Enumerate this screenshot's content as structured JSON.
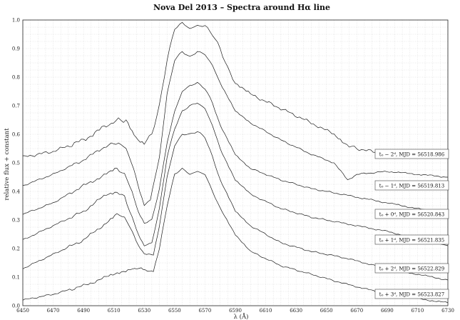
{
  "chart_data": {
    "type": "line",
    "title": "Nova Del 2013 – Spectra around Hα line",
    "xlabel": "λ (Å)",
    "ylabel": "relative flux + constant",
    "xlim": [
      6450,
      6730
    ],
    "ylim": [
      0.0,
      1.0
    ],
    "x_ticks": [
      "6450",
      "6470",
      "6490",
      "6510",
      "6530",
      "6550",
      "6570",
      "6590",
      "6610",
      "6630",
      "6650",
      "6670",
      "6690",
      "6710",
      "6730"
    ],
    "y_ticks": [
      "0.0",
      "0.1",
      "0.2",
      "0.3",
      "0.4",
      "0.5",
      "0.6",
      "0.7",
      "0.8",
      "0.9",
      "1.0"
    ],
    "grid": true,
    "series": [
      {
        "name": "t₀ − 2ᵈ, MJD = 56518.986",
        "x": [
          6450,
          6470,
          6490,
          6505,
          6513,
          6518,
          6522,
          6526,
          6530,
          6535,
          6540,
          6545,
          6550,
          6555,
          6560,
          6565,
          6570,
          6575,
          6580,
          6585,
          6590,
          6600,
          6620,
          6640,
          6655,
          6662,
          6665,
          6670,
          6690
        ],
        "y": [
          0.52,
          0.54,
          0.58,
          0.63,
          0.65,
          0.65,
          0.61,
          0.58,
          0.57,
          0.6,
          0.7,
          0.86,
          0.97,
          0.99,
          0.97,
          0.98,
          0.98,
          0.95,
          0.9,
          0.83,
          0.78,
          0.74,
          0.69,
          0.64,
          0.6,
          0.57,
          0.56,
          0.55,
          0.53
        ]
      },
      {
        "name": "t₀ − 1ᵈ, MJD = 56519.813",
        "x": [
          6450,
          6470,
          6490,
          6505,
          6513,
          6518,
          6523,
          6527,
          6530,
          6534,
          6540,
          6545,
          6550,
          6555,
          6560,
          6565,
          6570,
          6575,
          6580,
          6590,
          6600,
          6620,
          6640,
          6655,
          6661,
          6664,
          6670,
          6690,
          6730
        ],
        "y": [
          0.42,
          0.46,
          0.51,
          0.56,
          0.57,
          0.55,
          0.48,
          0.4,
          0.35,
          0.37,
          0.52,
          0.74,
          0.86,
          0.89,
          0.87,
          0.89,
          0.88,
          0.84,
          0.78,
          0.68,
          0.64,
          0.58,
          0.53,
          0.5,
          0.46,
          0.44,
          0.46,
          0.47,
          0.45
        ]
      },
      {
        "name": "t₀ + 0ᵈ, MJD = 56520.843",
        "x": [
          6450,
          6470,
          6490,
          6505,
          6512,
          6517,
          6522,
          6526,
          6530,
          6535,
          6540,
          6545,
          6550,
          6555,
          6560,
          6565,
          6570,
          6575,
          6580,
          6590,
          6600,
          6620,
          6640,
          6660,
          6690,
          6730
        ],
        "y": [
          0.32,
          0.36,
          0.42,
          0.46,
          0.48,
          0.46,
          0.4,
          0.33,
          0.29,
          0.3,
          0.41,
          0.57,
          0.68,
          0.75,
          0.77,
          0.78,
          0.76,
          0.71,
          0.63,
          0.53,
          0.48,
          0.44,
          0.41,
          0.39,
          0.36,
          0.32
        ]
      },
      {
        "name": "t₀ + 1ᵈ, MJD = 56521.835",
        "x": [
          6450,
          6470,
          6490,
          6505,
          6512,
          6517,
          6522,
          6526,
          6530,
          6535,
          6540,
          6545,
          6550,
          6555,
          6560,
          6565,
          6570,
          6575,
          6580,
          6590,
          6600,
          6620,
          6640,
          6660,
          6690,
          6730
        ],
        "y": [
          0.23,
          0.28,
          0.33,
          0.39,
          0.4,
          0.38,
          0.31,
          0.25,
          0.21,
          0.22,
          0.34,
          0.52,
          0.62,
          0.68,
          0.7,
          0.71,
          0.69,
          0.63,
          0.55,
          0.44,
          0.39,
          0.34,
          0.31,
          0.29,
          0.26,
          0.21
        ]
      },
      {
        "name": "t₀ + 2ᵈ, MJD = 56522.829",
        "x": [
          6450,
          6470,
          6490,
          6505,
          6512,
          6517,
          6522,
          6526,
          6530,
          6536,
          6540,
          6545,
          6550,
          6555,
          6560,
          6565,
          6570,
          6575,
          6580,
          6590,
          6600,
          6620,
          6640,
          6660,
          6690,
          6730
        ],
        "y": [
          0.13,
          0.18,
          0.23,
          0.29,
          0.32,
          0.31,
          0.26,
          0.21,
          0.18,
          0.18,
          0.28,
          0.45,
          0.56,
          0.6,
          0.6,
          0.61,
          0.59,
          0.52,
          0.44,
          0.33,
          0.28,
          0.22,
          0.19,
          0.17,
          0.13,
          0.09
        ]
      },
      {
        "name": "t₀ + 3ᵈ, MJD = 56523.827",
        "x": [
          6450,
          6470,
          6490,
          6505,
          6515,
          6522,
          6528,
          6532,
          6536,
          6540,
          6545,
          6550,
          6555,
          6560,
          6565,
          6570,
          6575,
          6580,
          6590,
          6600,
          6620,
          6640,
          6660,
          6690,
          6730
        ],
        "y": [
          0.02,
          0.04,
          0.07,
          0.1,
          0.12,
          0.13,
          0.13,
          0.12,
          0.12,
          0.2,
          0.35,
          0.46,
          0.48,
          0.46,
          0.47,
          0.46,
          0.4,
          0.34,
          0.25,
          0.19,
          0.14,
          0.11,
          0.08,
          0.04,
          0.01
        ]
      }
    ]
  }
}
